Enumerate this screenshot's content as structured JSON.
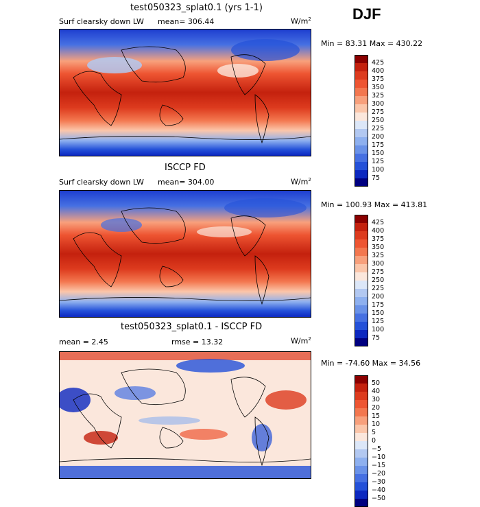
{
  "season": "DJF",
  "panels": [
    {
      "title": "test050323_splat0.1 (yrs 1-1)",
      "variable": "Surf clearsky down LW",
      "stats_text": "mean= 306.44",
      "units": "W/m",
      "units_sup": "2",
      "minmax": "Min =  83.31 Max = 430.22",
      "colorbar": {
        "labels": [
          "425",
          "400",
          "375",
          "350",
          "325",
          "300",
          "275",
          "250",
          "225",
          "200",
          "175",
          "150",
          "125",
          "100",
          "75"
        ],
        "colors": [
          "#8b0000",
          "#c4210e",
          "#dd3b1e",
          "#ee5532",
          "#f3774f",
          "#f8a07c",
          "#fbc6aa",
          "#fbe7dc",
          "#dce7f8",
          "#b2c8f1",
          "#8eb0ef",
          "#6a92e8",
          "#4670e2",
          "#2451d9",
          "#0c28c0",
          "#000080"
        ]
      }
    },
    {
      "title": "ISCCP FD",
      "variable": "Surf clearsky down LW",
      "stats_text": "mean= 304.00",
      "units": "W/m",
      "units_sup": "2",
      "minmax": "Min = 100.93 Max = 413.81",
      "colorbar": {
        "labels": [
          "425",
          "400",
          "375",
          "350",
          "325",
          "300",
          "275",
          "250",
          "225",
          "200",
          "175",
          "150",
          "125",
          "100",
          "75"
        ],
        "colors": [
          "#8b0000",
          "#c4210e",
          "#dd3b1e",
          "#ee5532",
          "#f3774f",
          "#f8a07c",
          "#fbc6aa",
          "#fbe7dc",
          "#dce7f8",
          "#b2c8f1",
          "#8eb0ef",
          "#6a92e8",
          "#4670e2",
          "#2451d9",
          "#0c28c0",
          "#000080"
        ]
      }
    },
    {
      "title": "test050323_splat0.1 - ISCCP FD",
      "variable": "",
      "mean_text": "mean =    2.45",
      "rmse_text": "rmse =  13.32",
      "units": "W/m",
      "units_sup": "2",
      "minmax": "Min = -74.60 Max =  34.56",
      "colorbar": {
        "labels": [
          "50",
          "40",
          "30",
          "20",
          "15",
          "10",
          "5",
          "0",
          "−5",
          "−10",
          "−15",
          "−20",
          "−30",
          "−40",
          "−50"
        ],
        "colors": [
          "#8b0000",
          "#c4210e",
          "#dd3b1e",
          "#ee5532",
          "#f3774f",
          "#f8a07c",
          "#fbc6aa",
          "#fbe7dc",
          "#dce7f8",
          "#b2c8f1",
          "#8eb0ef",
          "#6a92e8",
          "#4670e2",
          "#2451d9",
          "#0c28c0",
          "#000080"
        ]
      }
    }
  ]
}
